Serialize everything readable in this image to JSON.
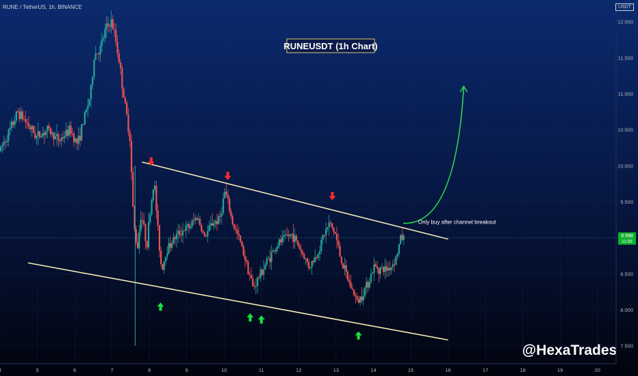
{
  "header": {
    "symbol_line": "RUNE / TetherUS, 1h, BINANCE",
    "currency": "USDT"
  },
  "chart_data": {
    "type": "candlestick",
    "title": "RUNEUSDT (1h Chart)",
    "ylim": [
      7.25,
      12.3
    ],
    "xlim": [
      4,
      20.5
    ],
    "y_ticks": [
      7.5,
      8.0,
      8.5,
      9.0,
      9.5,
      10.0,
      10.5,
      11.0,
      11.5,
      12.0
    ],
    "y_tick_labels": [
      "7.500",
      "8.000",
      "8.500",
      "9.000",
      "9.500",
      "10.000",
      "10.500",
      "11.000",
      "11.500",
      "12.000"
    ],
    "x_ticks": [
      4,
      5,
      6,
      7,
      8,
      9,
      10,
      11,
      12,
      13,
      14,
      15,
      16,
      17,
      18,
      19,
      20
    ],
    "x_tick_labels": [
      "4",
      "5",
      "6",
      "7",
      "8",
      "9",
      "10",
      "11",
      "12",
      "13",
      "14",
      "15",
      "16",
      "17",
      "18",
      "19",
      "20"
    ],
    "current_price": {
      "label": "8.998",
      "countdown": "11:56",
      "value": 8.998
    },
    "price_path": [
      [
        4.0,
        10.2
      ],
      [
        4.3,
        10.5
      ],
      [
        4.5,
        10.75
      ],
      [
        4.8,
        10.55
      ],
      [
        5.0,
        10.4
      ],
      [
        5.3,
        10.5
      ],
      [
        5.6,
        10.35
      ],
      [
        5.9,
        10.5
      ],
      [
        6.1,
        10.3
      ],
      [
        6.3,
        10.7
      ],
      [
        6.45,
        11.0
      ],
      [
        6.55,
        11.55
      ],
      [
        6.7,
        11.6
      ],
      [
        6.85,
        11.9
      ],
      [
        7.0,
        12.0
      ],
      [
        7.1,
        11.8
      ],
      [
        7.2,
        11.5
      ],
      [
        7.35,
        10.9
      ],
      [
        7.5,
        10.4
      ],
      [
        7.6,
        9.2
      ],
      [
        7.7,
        8.85
      ],
      [
        7.8,
        9.35
      ],
      [
        7.95,
        8.9
      ],
      [
        8.05,
        9.4
      ],
      [
        8.15,
        9.8
      ],
      [
        8.25,
        9.1
      ],
      [
        8.35,
        8.55
      ],
      [
        8.5,
        8.85
      ],
      [
        8.7,
        9.0
      ],
      [
        8.9,
        9.1
      ],
      [
        9.1,
        9.15
      ],
      [
        9.3,
        9.3
      ],
      [
        9.5,
        9.0
      ],
      [
        9.7,
        9.2
      ],
      [
        9.9,
        9.25
      ],
      [
        10.05,
        9.65
      ],
      [
        10.25,
        9.2
      ],
      [
        10.45,
        8.95
      ],
      [
        10.65,
        8.6
      ],
      [
        10.8,
        8.3
      ],
      [
        11.0,
        8.5
      ],
      [
        11.2,
        8.7
      ],
      [
        11.45,
        8.9
      ],
      [
        11.65,
        9.0
      ],
      [
        11.85,
        9.05
      ],
      [
        12.05,
        8.85
      ],
      [
        12.3,
        8.6
      ],
      [
        12.5,
        8.75
      ],
      [
        12.7,
        9.05
      ],
      [
        12.85,
        9.2
      ],
      [
        13.0,
        9.05
      ],
      [
        13.15,
        8.7
      ],
      [
        13.35,
        8.4
      ],
      [
        13.6,
        8.1
      ],
      [
        13.85,
        8.35
      ],
      [
        14.05,
        8.6
      ],
      [
        14.3,
        8.55
      ],
      [
        14.5,
        8.6
      ],
      [
        14.65,
        8.75
      ],
      [
        14.75,
        9.0
      ],
      [
        14.8,
        9.0
      ]
    ],
    "annotations": {
      "resistance_line": {
        "from": [
          7.8,
          10.05
        ],
        "to": [
          16.0,
          8.98
        ]
      },
      "support_line": {
        "from": [
          4.75,
          8.65
        ],
        "to": [
          16.0,
          7.58
        ]
      },
      "projection_curve": {
        "from": [
          14.8,
          9.2
        ],
        "to": [
          16.42,
          11.1
        ]
      },
      "note_text": "Only buy after channel breakout",
      "watermark": "@HexaTrades",
      "sell_arrows": [
        [
          8.05,
          10.0
        ],
        [
          10.1,
          9.8
        ],
        [
          12.9,
          9.52
        ]
      ],
      "buy_arrows": [
        [
          8.3,
          8.1
        ],
        [
          10.7,
          7.95
        ],
        [
          11.0,
          7.92
        ],
        [
          13.6,
          7.7
        ]
      ]
    },
    "colors": {
      "up": "#26a69a",
      "down": "#ef5350",
      "channel": "#f5ecb6",
      "arrow_up": "#18e33f",
      "arrow_down": "#ff2b2b",
      "projection": "#2ed64b",
      "title_border": "#e0cf70"
    }
  }
}
